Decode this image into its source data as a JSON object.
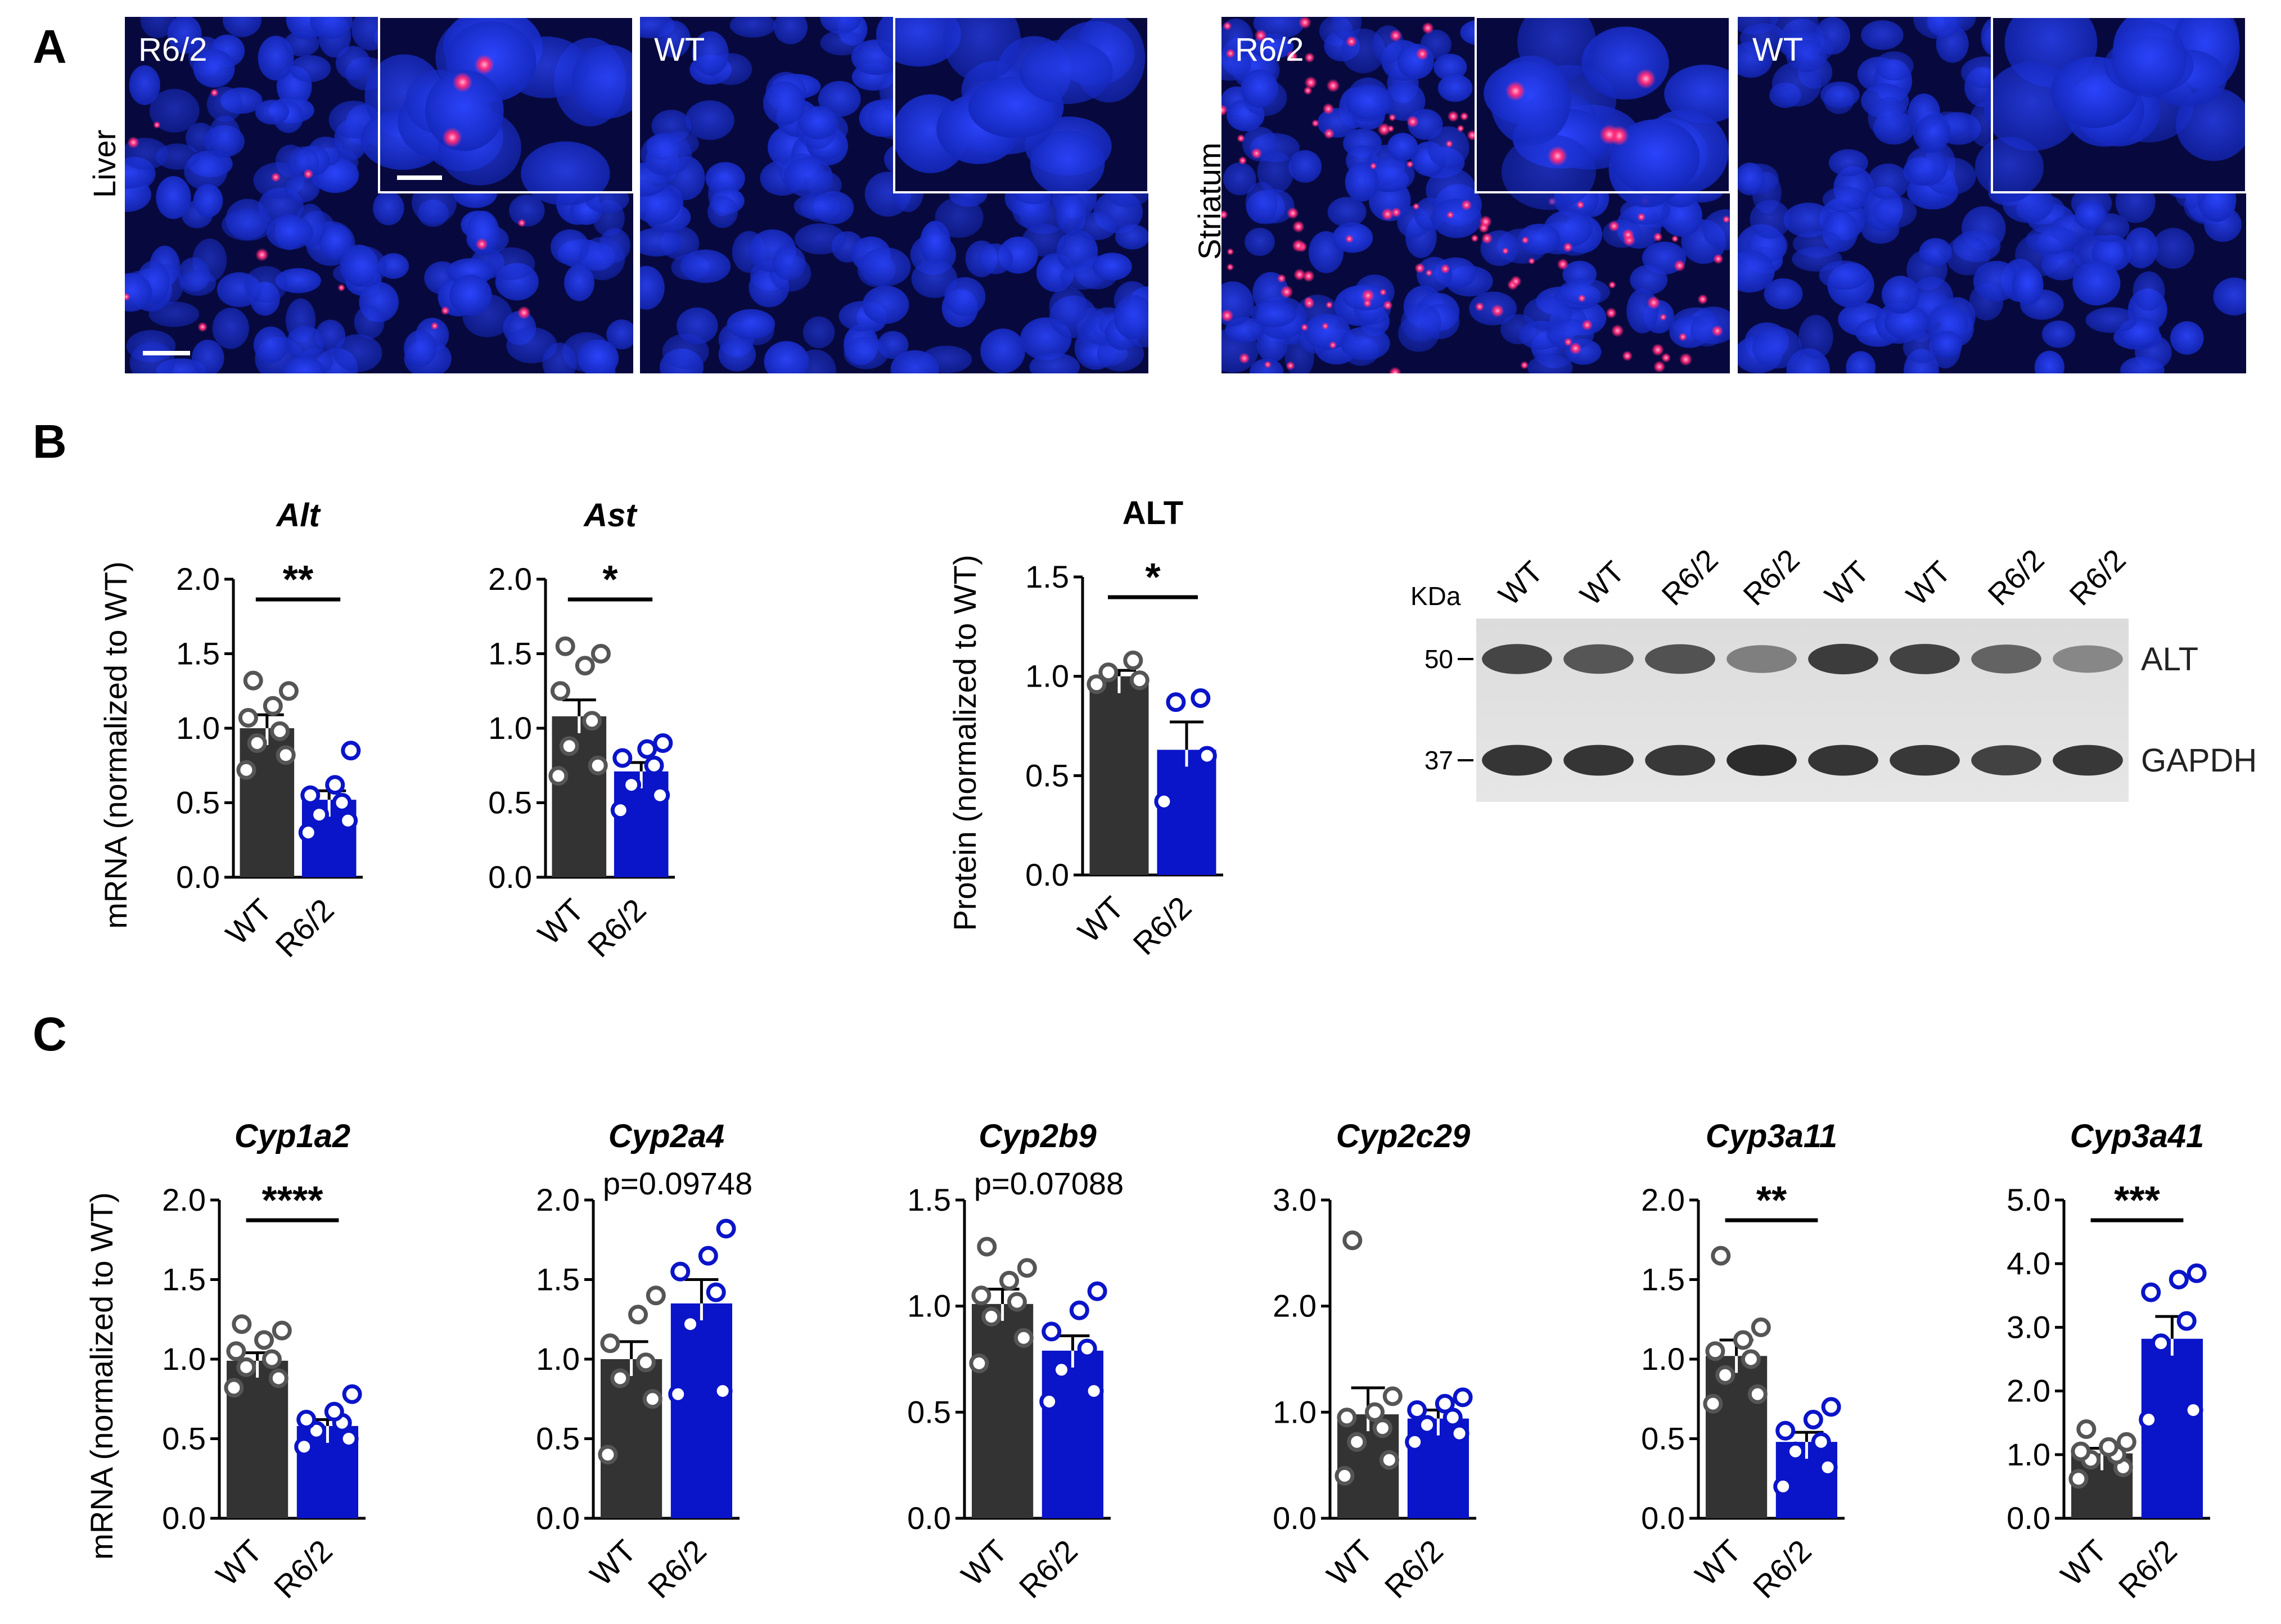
{
  "panel_letters": {
    "a": "A",
    "b": "B",
    "c": "C"
  },
  "panel_a": {
    "liver": {
      "tissue": "Liver",
      "left_label": "R6/2",
      "right_label": "WT"
    },
    "striatum": {
      "tissue": "Striatum",
      "left_label": "R6/2",
      "right_label": "WT"
    },
    "colors": {
      "nuclei": "#1a2fd0",
      "background": "#07093e",
      "puncta": "#ff2a5a"
    }
  },
  "western_blot": {
    "unit": "KDa",
    "lanes": [
      "WT",
      "WT",
      "R6/2",
      "R6/2",
      "WT",
      "WT",
      "R6/2",
      "R6/2"
    ],
    "markers": [
      {
        "label": "50"
      },
      {
        "label": "37"
      }
    ],
    "bands": [
      {
        "name": "ALT",
        "intensity": [
          0.8,
          0.7,
          0.72,
          0.45,
          0.85,
          0.82,
          0.62,
          0.4
        ]
      },
      {
        "name": "GAPDH",
        "intensity": [
          0.9,
          0.9,
          0.88,
          0.95,
          0.9,
          0.88,
          0.82,
          0.88
        ]
      }
    ]
  },
  "colors": {
    "wt_bar": "#333333",
    "r62_bar": "#0a14c8",
    "wt_dot": "#555555",
    "r62_dot": "#0a14c8"
  },
  "chart_data": [
    {
      "type": "bar",
      "title": "Alt",
      "ylabel": "mRNA (normalized to WT)",
      "categories": [
        "WT",
        "R6/2"
      ],
      "ylim": [
        0,
        2.0
      ],
      "yticks": [
        "0.0",
        "0.5",
        "1.0",
        "1.5",
        "2.0"
      ],
      "means": [
        1.0,
        0.52
      ],
      "sem": [
        0.09,
        0.06
      ],
      "points": [
        [
          0.72,
          0.82,
          0.9,
          0.98,
          1.07,
          1.15,
          1.25,
          1.32
        ],
        [
          0.3,
          0.38,
          0.42,
          0.5,
          0.55,
          0.62,
          0.85
        ]
      ],
      "annotation": "**"
    },
    {
      "type": "bar",
      "title": "Ast",
      "ylabel": "",
      "categories": [
        "WT",
        "R6/2"
      ],
      "ylim": [
        0,
        2.0
      ],
      "yticks": [
        "0.0",
        "0.5",
        "1.0",
        "1.5",
        "2.0"
      ],
      "means": [
        1.08,
        0.71
      ],
      "sem": [
        0.11,
        0.06
      ],
      "points": [
        [
          0.68,
          0.75,
          0.88,
          1.05,
          1.25,
          1.42,
          1.5,
          1.55
        ],
        [
          0.45,
          0.55,
          0.62,
          0.75,
          0.8,
          0.86,
          0.9
        ]
      ],
      "annotation": "*"
    },
    {
      "type": "bar",
      "title": "ALT",
      "ylabel": "Protein (normalized to WT)",
      "categories": [
        "WT",
        "R6/2"
      ],
      "ylim": [
        0,
        1.5
      ],
      "yticks": [
        "0.0",
        "0.5",
        "1.0",
        "1.5"
      ],
      "means": [
        1.0,
        0.63
      ],
      "sem": [
        0.03,
        0.14
      ],
      "points": [
        [
          0.96,
          0.98,
          1.02,
          1.08
        ],
        [
          0.37,
          0.6,
          0.87,
          0.89
        ]
      ],
      "annotation": "*"
    },
    {
      "type": "bar",
      "title": "Cyp1a2",
      "ylabel": "mRNA (normalized to WT)",
      "categories": [
        "WT",
        "R6/2"
      ],
      "ylim": [
        0,
        2.0
      ],
      "yticks": [
        "0.0",
        "0.5",
        "1.0",
        "1.5",
        "2.0"
      ],
      "means": [
        0.99,
        0.58
      ],
      "sem": [
        0.05,
        0.04
      ],
      "points": [
        [
          0.82,
          0.88,
          0.95,
          1.0,
          1.05,
          1.12,
          1.18,
          1.22
        ],
        [
          0.45,
          0.5,
          0.55,
          0.6,
          0.62,
          0.67,
          0.78
        ]
      ],
      "annotation": "****"
    },
    {
      "type": "bar",
      "title": "Cyp2a4",
      "ylabel": "",
      "categories": [
        "WT",
        "R6/2"
      ],
      "ylim": [
        0,
        2.0
      ],
      "yticks": [
        "0.0",
        "0.5",
        "1.0",
        "1.5",
        "2.0"
      ],
      "means": [
        1.0,
        1.35
      ],
      "sem": [
        0.11,
        0.15
      ],
      "points": [
        [
          0.4,
          0.75,
          0.88,
          0.98,
          1.1,
          1.28,
          1.4
        ],
        [
          0.78,
          0.8,
          1.22,
          1.42,
          1.55,
          1.65,
          1.82
        ]
      ],
      "annotation": "p=0.09748"
    },
    {
      "type": "bar",
      "title": "Cyp2b9",
      "ylabel": "",
      "categories": [
        "WT",
        "R6/2"
      ],
      "ylim": [
        0,
        1.5
      ],
      "yticks": [
        "0.0",
        "0.5",
        "1.0",
        "1.5"
      ],
      "means": [
        1.01,
        0.79
      ],
      "sem": [
        0.07,
        0.07
      ],
      "points": [
        [
          0.73,
          0.85,
          0.95,
          1.02,
          1.05,
          1.12,
          1.18,
          1.28
        ],
        [
          0.55,
          0.6,
          0.7,
          0.8,
          0.88,
          0.98,
          1.07
        ]
      ],
      "annotation": "p=0.07088"
    },
    {
      "type": "bar",
      "title": "Cyp2c29",
      "ylabel": "",
      "categories": [
        "WT",
        "R6/2"
      ],
      "ylim": [
        0,
        3.0
      ],
      "yticks": [
        "0.0",
        "1.0",
        "2.0",
        "3.0"
      ],
      "means": [
        0.98,
        0.94
      ],
      "sem": [
        0.25,
        0.08
      ],
      "points": [
        [
          0.4,
          0.55,
          0.72,
          0.85,
          0.95,
          1.0,
          1.15,
          2.62
        ],
        [
          0.72,
          0.8,
          0.88,
          0.95,
          1.02,
          1.08,
          1.14
        ]
      ],
      "annotation": ""
    },
    {
      "type": "bar",
      "title": "Cyp3a11",
      "ylabel": "",
      "categories": [
        "WT",
        "R6/2"
      ],
      "ylim": [
        0,
        2.0
      ],
      "yticks": [
        "0.0",
        "0.5",
        "1.0",
        "1.5",
        "2.0"
      ],
      "means": [
        1.02,
        0.48
      ],
      "sem": [
        0.1,
        0.06
      ],
      "points": [
        [
          0.72,
          0.78,
          0.9,
          1.0,
          1.05,
          1.12,
          1.2,
          1.65
        ],
        [
          0.2,
          0.32,
          0.42,
          0.48,
          0.55,
          0.62,
          0.7
        ]
      ],
      "annotation": "**"
    },
    {
      "type": "bar",
      "title": "Cyp3a41",
      "ylabel": "",
      "categories": [
        "WT",
        "R6/2"
      ],
      "ylim": [
        0,
        5.0
      ],
      "yticks": [
        "0.0",
        "1.0",
        "2.0",
        "3.0",
        "4.0",
        "5.0"
      ],
      "means": [
        1.02,
        2.82
      ],
      "sem": [
        0.08,
        0.35
      ],
      "points": [
        [
          0.62,
          0.8,
          0.92,
          1.0,
          1.05,
          1.12,
          1.2,
          1.4
        ],
        [
          1.55,
          1.7,
          2.75,
          3.1,
          3.55,
          3.75,
          3.85
        ]
      ],
      "annotation": "***"
    }
  ]
}
